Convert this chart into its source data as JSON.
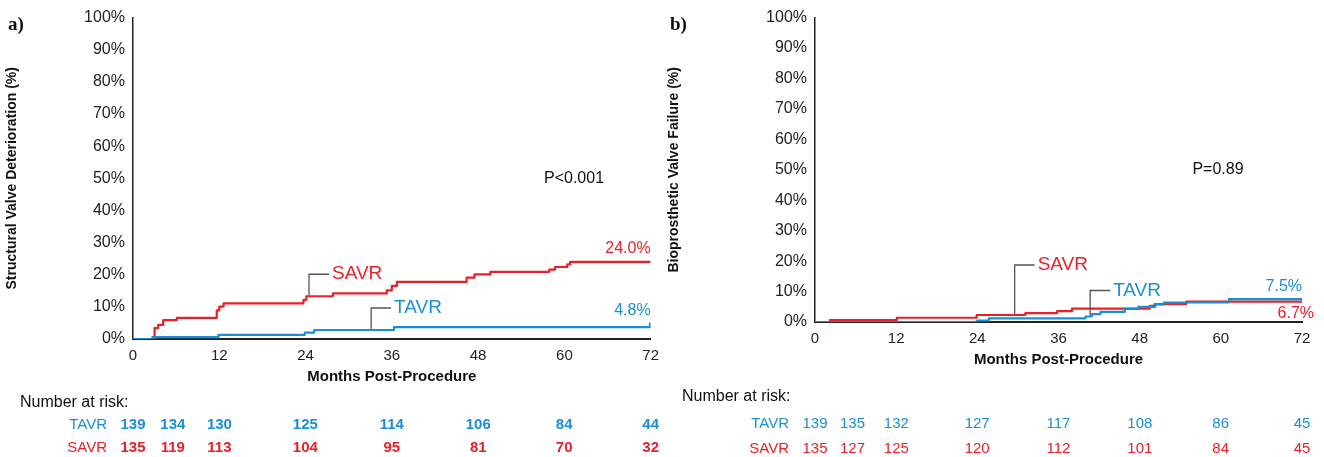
{
  "chart_data": [
    {
      "type": "step",
      "title": "a)",
      "xlabel": "Months Post-Procedure",
      "ylabel": "Structural Valve Deterioration (%)",
      "xlim": [
        0,
        72
      ],
      "xticks": [
        0,
        12,
        24,
        36,
        48,
        60,
        72
      ],
      "ylim": [
        0,
        100
      ],
      "yticks": [
        {
          "value": 0,
          "label": "0%"
        },
        {
          "value": 10,
          "label": "10%"
        },
        {
          "value": 20,
          "label": "20%"
        },
        {
          "value": 30,
          "label": "30%"
        },
        {
          "value": 40,
          "label": "40%"
        },
        {
          "value": 50,
          "label": "50%"
        },
        {
          "value": 60,
          "label": "60%"
        },
        {
          "value": 70,
          "label": "70%"
        },
        {
          "value": 80,
          "label": "80%"
        },
        {
          "value": 90,
          "label": "90%"
        },
        {
          "value": 100,
          "label": "100%"
        }
      ],
      "grid": false,
      "legend": false,
      "series": [
        {
          "name": "TAVR",
          "color": "#1a8fd3",
          "x": [
            0,
            2.7,
            11.9,
            23.9,
            25.2,
            36.3,
            71.9,
            72
          ],
          "values": [
            0,
            0.6,
            1.3,
            2.0,
            2.8,
            3.7,
            4.8,
            4.8
          ],
          "value_labels": [
            null,
            null,
            null,
            null,
            null,
            null,
            null,
            "4.8%"
          ]
        },
        {
          "name": "SAVR",
          "color": "#e8202a",
          "x": [
            0,
            3.0,
            3.5,
            4.2,
            6.1,
            11.65,
            12.0,
            12.6,
            23.7,
            24.1,
            27.8,
            35.3,
            36.0,
            36.7,
            46.4,
            47.5,
            49.7,
            57.9,
            58.7,
            60.4,
            60.8,
            72
          ],
          "values": [
            0,
            3.4,
            4.4,
            5.9,
            6.6,
            8.9,
            10.1,
            11.1,
            12.2,
            13.3,
            14.2,
            15.1,
            16.5,
            17.8,
            19.1,
            20.1,
            20.9,
            21.6,
            22.4,
            23.2,
            24.0,
            24.0
          ],
          "value_labels": [
            null,
            null,
            null,
            null,
            null,
            null,
            null,
            null,
            null,
            null,
            null,
            null,
            null,
            null,
            null,
            null,
            null,
            null,
            null,
            null,
            null,
            "24.0%"
          ]
        }
      ],
      "annotations": [
        "P<0.001",
        "Number at risk:",
        "TAVR",
        "139",
        "134",
        "130",
        "125",
        "114",
        "106",
        "84",
        "44",
        "SAVR",
        "135",
        "119",
        "113",
        "104",
        "95",
        "81",
        "70",
        "32"
      ]
    },
    {
      "type": "step",
      "title": "b)",
      "xlabel": "Months Post-Procedure",
      "ylabel": "Bioprosthetic Valve Failure (%)",
      "xlim": [
        0,
        72
      ],
      "xticks": [
        0,
        12,
        24,
        36,
        48,
        60,
        72
      ],
      "ylim": [
        0,
        100
      ],
      "yticks": [
        {
          "value": 0,
          "label": "0%"
        },
        {
          "value": 10,
          "label": "10%"
        },
        {
          "value": 20,
          "label": "20%"
        },
        {
          "value": 30,
          "label": "30%"
        },
        {
          "value": 40,
          "label": "40%"
        },
        {
          "value": 50,
          "label": "50%"
        },
        {
          "value": 60,
          "label": "60%"
        },
        {
          "value": 70,
          "label": "70%"
        },
        {
          "value": 80,
          "label": "80%"
        },
        {
          "value": 90,
          "label": "90%"
        },
        {
          "value": 100,
          "label": "100%"
        }
      ],
      "grid": false,
      "legend": false,
      "series": [
        {
          "name": "TAVR",
          "color": "#1a8fd3",
          "x": [
            0,
            23.9,
            25.7,
            40.0,
            40.9,
            42.2,
            45.8,
            47.8,
            50.3,
            51.6,
            61.2,
            72
          ],
          "values": [
            0,
            0.5,
            1.2,
            1.8,
            2.6,
            3.3,
            4.3,
            5.0,
            5.8,
            6.4,
            7.5,
            7.5
          ],
          "value_labels": [
            null,
            null,
            null,
            null,
            null,
            null,
            null,
            null,
            null,
            null,
            null,
            "7.5%"
          ]
        },
        {
          "name": "SAVR",
          "color": "#e8202a",
          "x": [
            0,
            2.2,
            12.1,
            23.9,
            31.1,
            35.8,
            38.0,
            49.5,
            50.2,
            54.9,
            72
          ],
          "values": [
            0,
            0.6,
            1.4,
            2.3,
            2.9,
            3.6,
            4.4,
            5.3,
            5.9,
            6.7,
            6.7
          ],
          "value_labels": [
            null,
            null,
            null,
            null,
            null,
            null,
            null,
            null,
            null,
            null,
            "6.7%"
          ]
        }
      ],
      "annotations": [
        "P=0.89",
        "Number at risk:",
        "TAVR",
        "139",
        "135",
        "132",
        "127",
        "117",
        "108",
        "86",
        "45",
        "SAVR",
        "135",
        "127",
        "125",
        "120",
        "112",
        "101",
        "84",
        "45"
      ]
    }
  ]
}
